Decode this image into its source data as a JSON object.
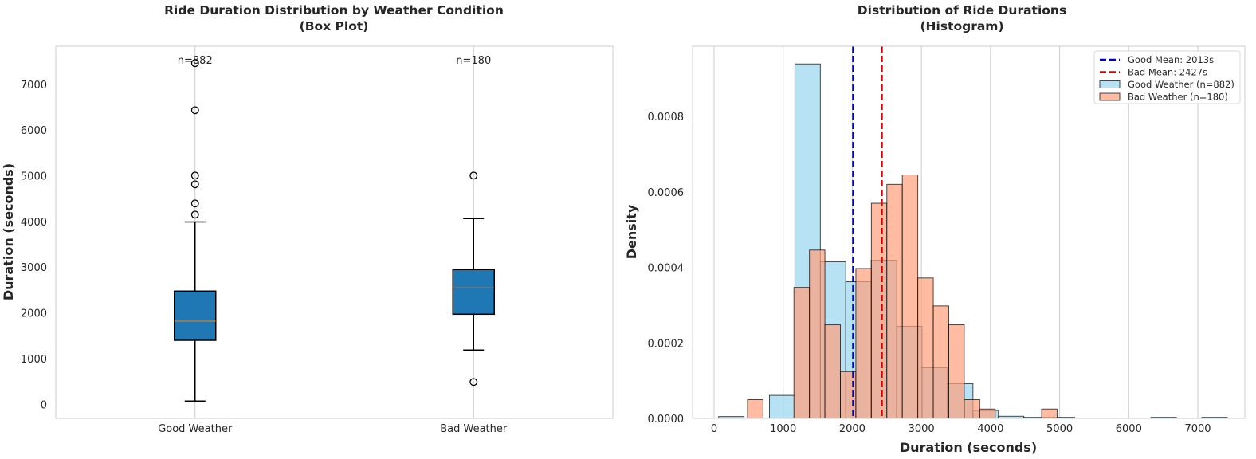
{
  "chart_data": [
    {
      "type": "box",
      "title": [
        "Ride Duration Distribution by Weather Condition",
        "(Box Plot)"
      ],
      "xlabel": "",
      "ylabel": "Duration (seconds)",
      "categories": [
        "Good Weather",
        "Bad Weather"
      ],
      "ylim": [
        -309,
        7834
      ],
      "yticks": [
        0,
        1000,
        2000,
        3000,
        4000,
        5000,
        6000,
        7000
      ],
      "grid": "vertical at categories",
      "box_color": "#1f77b4",
      "median_color": "#ff7f0e",
      "series": [
        {
          "category": "Good Weather",
          "whisker_low": 70,
          "q1": 1400,
          "median": 1819,
          "q3": 2476,
          "whisker_high": 3990,
          "outliers": [
            4150,
            4394,
            4812,
            5004,
            6434,
            7463
          ],
          "annotation": "n=882"
        },
        {
          "category": "Bad Weather",
          "whisker_low": 1186,
          "q1": 1970,
          "median": 2546,
          "q3": 2947,
          "whisker_high": 4063,
          "outliers": [
            488,
            5004
          ],
          "annotation": "n=180"
        }
      ]
    },
    {
      "type": "histogram",
      "title": [
        "Distribution of Ride Durations",
        "(Histogram)"
      ],
      "xlabel": "Duration (seconds)",
      "ylabel": "Density",
      "xlim": [
        -311,
        7680
      ],
      "ylim": [
        0,
        0.000986
      ],
      "xticks": [
        0,
        1000,
        2000,
        3000,
        4000,
        5000,
        6000,
        7000
      ],
      "yticks": [
        "0.0000",
        "0.0002",
        "0.0004",
        "0.0006",
        "0.0008"
      ],
      "grid": "vertical",
      "legend_position": "top-right",
      "series": [
        {
          "name": "Good Weather (n=882)",
          "color": "#87ceeb",
          "bin_edges": [
            66,
            434,
            802,
            1170,
            1538,
            1906,
            2274,
            2642,
            3010,
            3378,
            3746,
            4114,
            4482,
            4850,
            5218,
            5586,
            5954,
            6322,
            6690,
            7058,
            7426
          ],
          "density": [
            5e-06,
            0,
            6.1e-05,
            0.000939,
            0.000415,
            0.000362,
            0.000419,
            0.000244,
            0.000134,
            9.2e-05,
            2.1e-05,
            5.7e-06,
            2.8e-06,
            2.8e-06,
            0,
            0,
            0,
            2.8e-06,
            0,
            2.8e-06
          ]
        },
        {
          "name": "Bad Weather (n=180)",
          "color": "#ffa07a",
          "bin_edges": [
            484,
            708,
            932,
            1156,
            1380,
            1604,
            1828,
            2052,
            2276,
            2500,
            2724,
            2948,
            3172,
            3396,
            3620,
            3844,
            4068,
            4292,
            4516,
            4740,
            4964
          ],
          "density": [
            4.96e-05,
            0,
            0,
            0.000347,
            0.000446,
            0.000248,
            0.000124,
            0.000397,
            0.00057,
            0.00062,
            0.000645,
            0.000372,
            0.000298,
            0.000248,
            4.96e-05,
            2.48e-05,
            0,
            0,
            0,
            2.48e-05
          ]
        }
      ],
      "mean_lines": [
        {
          "name": "Good Mean: 2013s",
          "value": 2013,
          "color": "#0000cc"
        },
        {
          "name": "Bad Mean: 2427s",
          "value": 2427,
          "color": "#dd0000"
        }
      ]
    }
  ]
}
